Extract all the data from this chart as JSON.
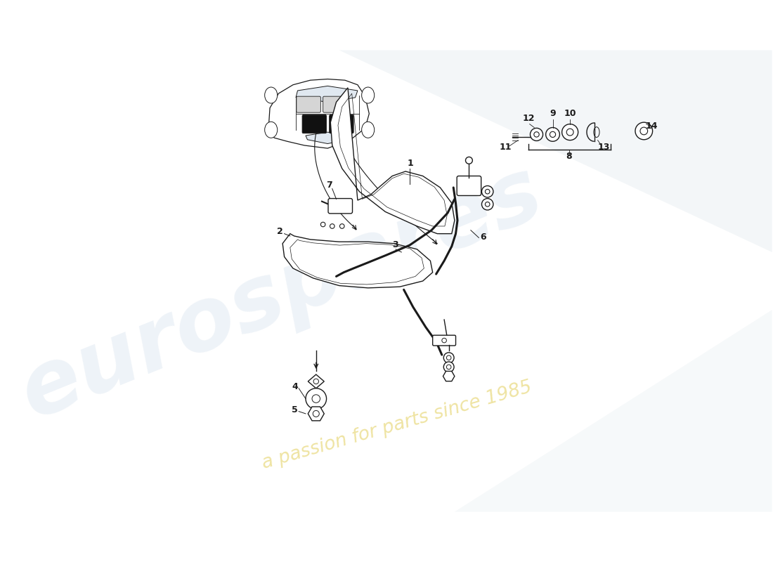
{
  "background_color": "#ffffff",
  "line_color": "#1a1a1a",
  "watermark_color_blue": "#c8d8e8",
  "watermark_color_yellow": "#e8d87a"
}
